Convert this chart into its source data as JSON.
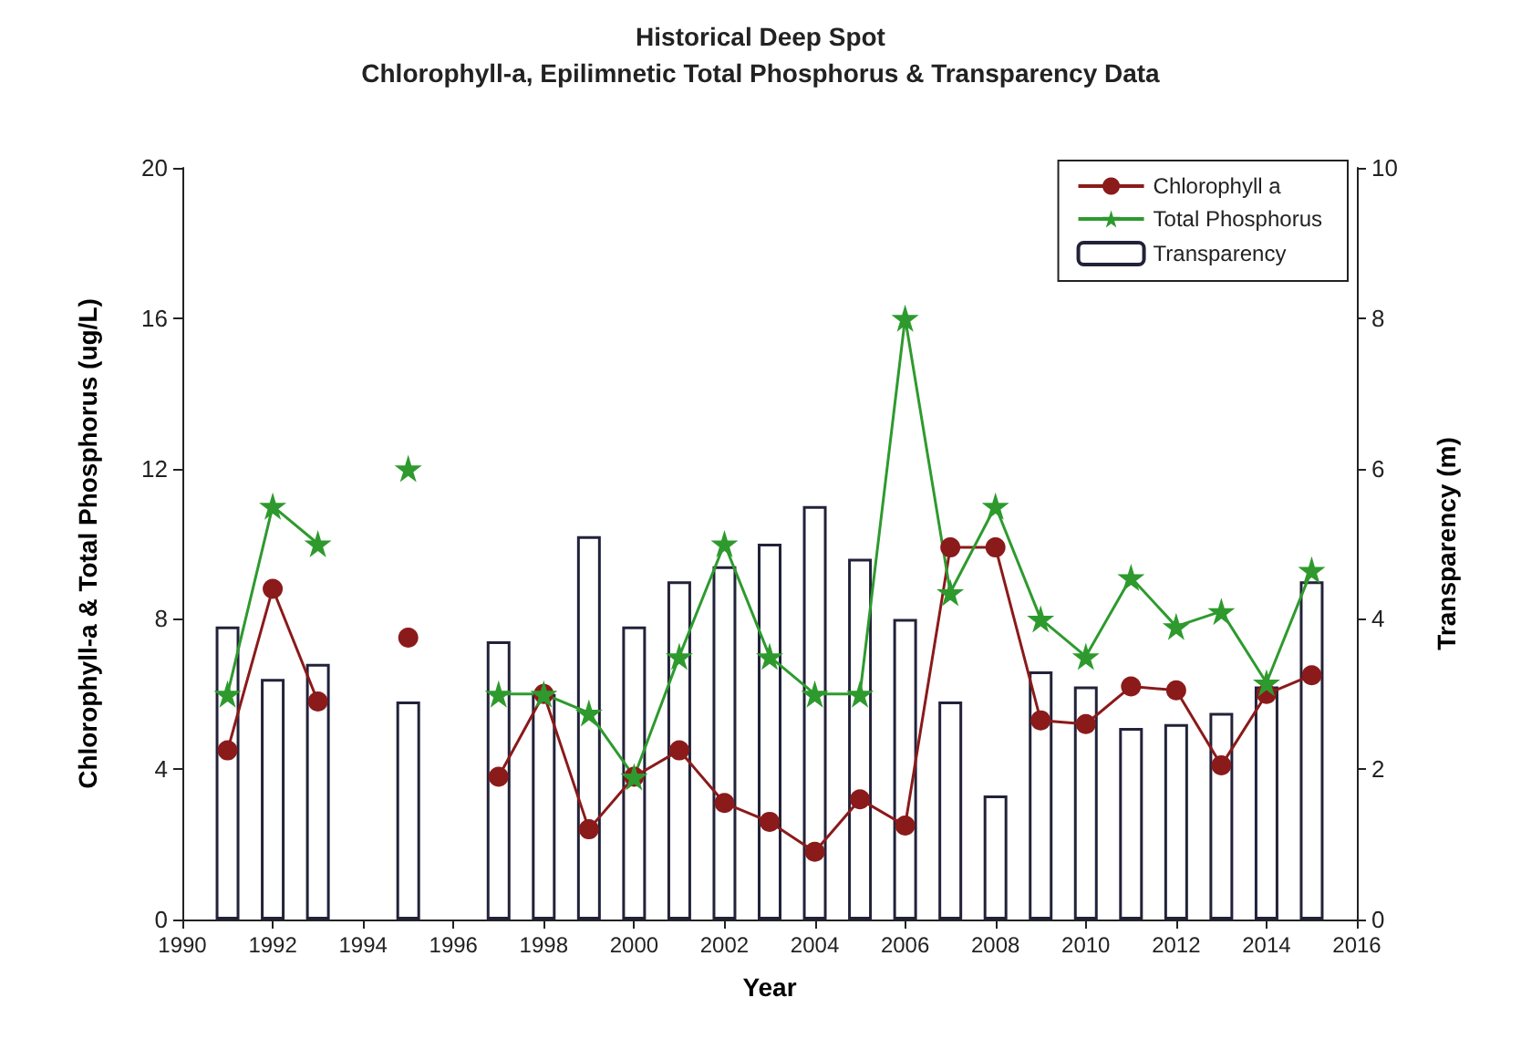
{
  "chart_data": {
    "type": "line",
    "title": "Historical Deep Spot",
    "subtitle": "Chlorophyll-a, Epilimnetic Total Phosphorus & Transparency Data",
    "xlabel": "Year",
    "ylabel": "Chlorophyll-a & Total Phosphorus (ug/L)",
    "y2label": "Transparency (m)",
    "x": [
      1991,
      1992,
      1993,
      1994,
      1995,
      1996,
      1997,
      1998,
      1999,
      2000,
      2001,
      2002,
      2003,
      2004,
      2005,
      2006,
      2007,
      2008,
      2009,
      2010,
      2011,
      2012,
      2013,
      2014,
      2015
    ],
    "series": [
      {
        "name": "Chlorophyll a",
        "color": "#8b1a1a",
        "marker": "circle",
        "values": [
          4.5,
          8.8,
          5.8,
          null,
          7.5,
          null,
          3.8,
          6.0,
          2.4,
          3.8,
          4.5,
          3.1,
          2.6,
          1.8,
          3.2,
          2.5,
          9.9,
          9.9,
          5.3,
          5.2,
          6.2,
          6.1,
          4.1,
          6.0,
          6.5
        ]
      },
      {
        "name": "Total Phosphorus",
        "color": "#2e9a2e",
        "marker": "star",
        "values": [
          6.0,
          11.0,
          10.0,
          null,
          12.0,
          null,
          6.0,
          6.0,
          5.5,
          3.8,
          7.0,
          10.0,
          7.0,
          6.0,
          6.0,
          16.0,
          8.7,
          11.0,
          8.0,
          7.0,
          9.1,
          7.8,
          8.2,
          6.3,
          9.3
        ]
      },
      {
        "name": "Transparency",
        "type": "bar",
        "axis": "y2",
        "color": "#22223a",
        "values": [
          3.9,
          3.2,
          3.4,
          null,
          2.9,
          null,
          3.7,
          3.0,
          5.1,
          3.9,
          4.5,
          4.7,
          5.0,
          5.5,
          4.8,
          4.0,
          2.9,
          1.65,
          3.3,
          3.1,
          2.55,
          2.6,
          2.75,
          3.1,
          4.5
        ]
      }
    ],
    "xlim": [
      1990,
      2016
    ],
    "xticks": [
      1990,
      1992,
      1994,
      1996,
      1998,
      2000,
      2002,
      2004,
      2006,
      2008,
      2010,
      2012,
      2014,
      2016
    ],
    "ylim": [
      0,
      20
    ],
    "yticks": [
      0,
      4,
      8,
      12,
      16,
      20
    ],
    "y2lim": [
      0,
      10
    ],
    "y2ticks": [
      0,
      2,
      4,
      6,
      8,
      10
    ],
    "grid": false,
    "legend": "top right",
    "line_style": "solid"
  }
}
